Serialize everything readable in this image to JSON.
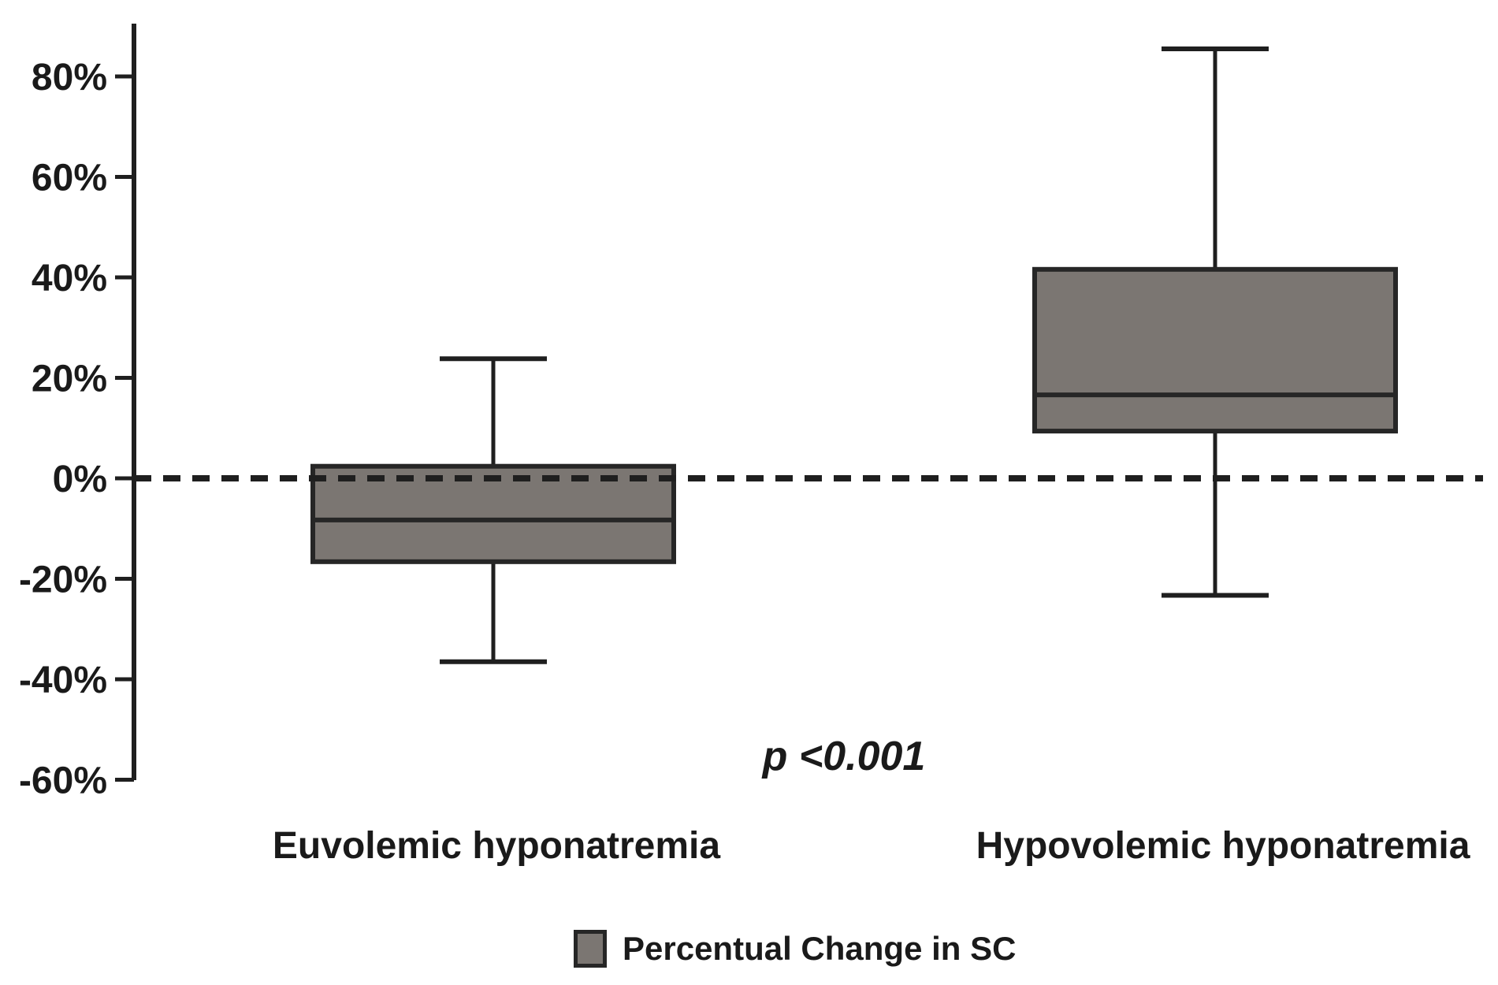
{
  "figure": {
    "background": "#ffffff"
  },
  "chart_data": {
    "type": "boxplot",
    "orientation": "vertical",
    "title": "",
    "xlabel": "",
    "ylabel": "",
    "grid": false,
    "categories": [
      "Euvolemic hyponatremia",
      "Hypovolemic hyponatremia"
    ],
    "series": [
      {
        "name": "Percentual Change in SC",
        "boxes": [
          {
            "category": "Euvolemic hyponatremia",
            "whisker_low": -36.5,
            "q1": -16.6,
            "median": -8.3,
            "q3": 2.4,
            "whisker_high": 23.8
          },
          {
            "category": "Hypovolemic hyponatremia",
            "whisker_low": -23.3,
            "q1": 9.4,
            "median": 16.6,
            "q3": 41.6,
            "whisker_high": 85.5
          }
        ]
      }
    ],
    "ylim": [
      -60,
      90
    ],
    "yticks": [
      {
        "value": 80,
        "label": "80%"
      },
      {
        "value": 60,
        "label": "60%"
      },
      {
        "value": 40,
        "label": "40%"
      },
      {
        "value": 20,
        "label": "20%"
      },
      {
        "value": 0,
        "label": "0%"
      },
      {
        "value": -20,
        "label": "-20%"
      },
      {
        "value": -40,
        "label": "-40%"
      },
      {
        "value": -60,
        "label": "-60%"
      }
    ],
    "reference_line": {
      "value": 0,
      "style": "dashed"
    },
    "annotation": {
      "text": "p <0.001"
    },
    "legend": {
      "label": "Percentual Change in SC",
      "position": "bottom"
    },
    "colors": {
      "box_fill": "#7b7672",
      "box_border": "#262626",
      "line": "#1f1f1f",
      "text": "#1a1a1a",
      "background": "#ffffff"
    }
  }
}
